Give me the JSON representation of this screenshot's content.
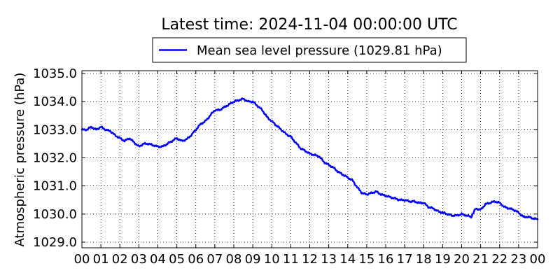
{
  "chart_data": {
    "type": "line",
    "title": "Latest time: 2024-11-04 00:00:00 UTC",
    "xlabel": "",
    "ylabel": "Atmospheric pressure (hPa)",
    "xlim": [
      0,
      24
    ],
    "ylim": [
      1028.8,
      1035.1
    ],
    "grid": true,
    "legend_position": "top-center",
    "x_tick_labels": [
      "00",
      "01",
      "02",
      "03",
      "04",
      "05",
      "06",
      "07",
      "08",
      "09",
      "10",
      "11",
      "12",
      "13",
      "14",
      "15",
      "16",
      "17",
      "18",
      "19",
      "20",
      "21",
      "22",
      "23",
      "00"
    ],
    "y_ticks": [
      1029.0,
      1030.0,
      1031.0,
      1032.0,
      1033.0,
      1034.0,
      1035.0
    ],
    "y_tick_labels": [
      "1029.0",
      "1030.0",
      "1031.0",
      "1032.0",
      "1033.0",
      "1034.0",
      "1035.0"
    ],
    "series": [
      {
        "name": "Mean sea level pressure (1029.81 hPa)",
        "color": "#0000ff",
        "x": [
          0,
          0.25,
          0.5,
          0.75,
          1.0,
          1.25,
          1.5,
          1.75,
          2.0,
          2.25,
          2.5,
          2.75,
          3.0,
          3.25,
          3.5,
          3.75,
          4.0,
          4.25,
          4.5,
          4.75,
          5.0,
          5.25,
          5.5,
          5.75,
          6.0,
          6.25,
          6.5,
          6.75,
          7.0,
          7.25,
          7.5,
          7.75,
          8.0,
          8.25,
          8.5,
          8.75,
          9.0,
          9.25,
          9.5,
          9.75,
          10.0,
          10.25,
          10.5,
          10.75,
          11.0,
          11.25,
          11.5,
          11.75,
          12.0,
          12.25,
          12.5,
          12.75,
          13.0,
          13.25,
          13.5,
          13.75,
          14.0,
          14.25,
          14.5,
          14.75,
          15.0,
          15.25,
          15.5,
          15.75,
          16.0,
          16.25,
          16.5,
          16.75,
          17.0,
          17.25,
          17.5,
          17.75,
          18.0,
          18.25,
          18.5,
          18.75,
          19.0,
          19.25,
          19.5,
          19.75,
          20.0,
          20.25,
          20.5,
          20.75,
          21.0,
          21.25,
          21.5,
          21.75,
          22.0,
          22.25,
          22.5,
          22.75,
          23.0,
          23.25,
          23.5,
          23.75,
          24.0
        ],
        "values": [
          1033.0,
          1033.0,
          1033.1,
          1033.0,
          1033.1,
          1033.0,
          1032.95,
          1032.8,
          1032.7,
          1032.6,
          1032.7,
          1032.55,
          1032.4,
          1032.5,
          1032.5,
          1032.45,
          1032.4,
          1032.4,
          1032.5,
          1032.6,
          1032.7,
          1032.6,
          1032.65,
          1032.8,
          1033.0,
          1033.2,
          1033.3,
          1033.5,
          1033.7,
          1033.7,
          1033.8,
          1033.9,
          1034.0,
          1034.05,
          1034.1,
          1034.0,
          1034.0,
          1033.85,
          1033.7,
          1033.45,
          1033.3,
          1033.15,
          1033.0,
          1032.85,
          1032.75,
          1032.55,
          1032.35,
          1032.25,
          1032.15,
          1032.1,
          1032.05,
          1031.85,
          1031.75,
          1031.65,
          1031.5,
          1031.4,
          1031.3,
          1031.2,
          1030.95,
          1030.75,
          1030.7,
          1030.75,
          1030.8,
          1030.7,
          1030.65,
          1030.6,
          1030.55,
          1030.5,
          1030.5,
          1030.45,
          1030.45,
          1030.4,
          1030.4,
          1030.25,
          1030.2,
          1030.1,
          1030.05,
          1030.0,
          1029.95,
          1029.95,
          1030.0,
          1029.95,
          1029.9,
          1030.2,
          1030.15,
          1030.35,
          1030.4,
          1030.45,
          1030.4,
          1030.25,
          1030.2,
          1030.15,
          1030.05,
          1029.9,
          1029.9,
          1029.85,
          1029.81
        ]
      }
    ]
  }
}
